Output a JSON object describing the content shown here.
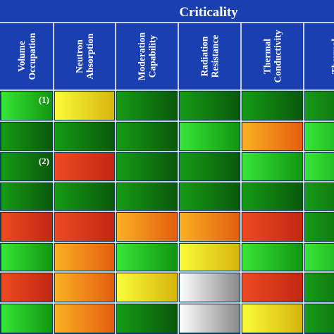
{
  "chart_data": {
    "type": "heatmap",
    "title": "Criticality",
    "columns": [
      {
        "key": "volume",
        "lines": [
          "Volume",
          "Occupation"
        ]
      },
      {
        "key": "neutron",
        "lines": [
          "Neutron",
          "Absorption"
        ]
      },
      {
        "key": "moderation",
        "lines": [
          "Moderation",
          "Capability"
        ]
      },
      {
        "key": "radiation",
        "lines": [
          "Radiation",
          "Resistance"
        ]
      },
      {
        "key": "thermal_cond",
        "lines": [
          "Thermal",
          "Conductivity"
        ]
      },
      {
        "key": "thermal_cut",
        "lines": [
          "Thermal"
        ]
      }
    ],
    "row_notes": [
      "(1)",
      "",
      "(2)",
      "",
      "",
      "",
      "",
      ""
    ],
    "cells": [
      [
        "light-green",
        "yellow",
        "dark-green",
        "dark-green",
        "dark-green",
        "dark-green"
      ],
      [
        "dark-green",
        "dark-green",
        "dark-green",
        "light-green",
        "orange",
        "light-green"
      ],
      [
        "dark-green",
        "red",
        "dark-green",
        "dark-green",
        "light-green",
        "light-green"
      ],
      [
        "dark-green",
        "dark-green",
        "dark-green",
        "dark-green",
        "dark-green",
        "dark-green"
      ],
      [
        "red",
        "red",
        "orange",
        "orange",
        "red",
        "dark-green"
      ],
      [
        "light-green",
        "orange",
        "light-green",
        "yellow",
        "light-green",
        "light-green"
      ],
      [
        "red",
        "orange",
        "yellow",
        "white",
        "red",
        "dark-green"
      ],
      [
        "light-green",
        "orange",
        "dark-green",
        "white",
        "yellow",
        "dark-green"
      ]
    ],
    "palette": {
      "light-green": [
        "#38e638",
        "#109610"
      ],
      "dark-green": [
        "#159c15",
        "#0a580a"
      ],
      "yellow": [
        "#fbfb3a",
        "#d6b50c"
      ],
      "orange": [
        "#fbb024",
        "#e35e0e"
      ],
      "red": [
        "#ee4a22",
        "#c12712"
      ],
      "white": [
        "#ffffff",
        "#8a8a8a"
      ]
    },
    "colors": {
      "background": "#0b3d57",
      "header": "#1a3fb0",
      "grid_line": "#ffffff",
      "text": "#ffffff"
    }
  }
}
